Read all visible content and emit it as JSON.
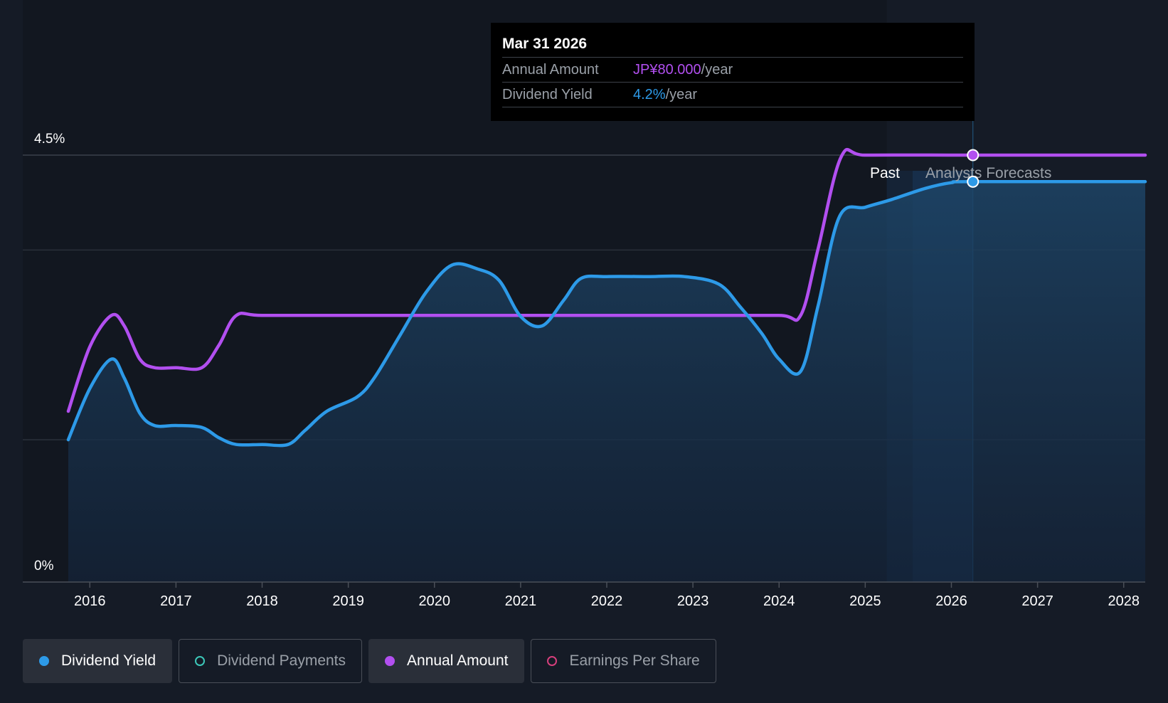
{
  "chart_data": {
    "type": "line",
    "y_axis": {
      "top_label": "4.5%",
      "bottom_label": "0%",
      "min": 0,
      "max": 4.5
    },
    "x_axis": {
      "min": 2015.75,
      "max": 2028.25,
      "ticks": [
        "2016",
        "2017",
        "2018",
        "2019",
        "2020",
        "2021",
        "2022",
        "2023",
        "2024",
        "2025",
        "2026",
        "2027",
        "2028"
      ]
    },
    "regions": {
      "past_label": "Past",
      "forecast_label": "Analysts Forecasts",
      "past_end": 2025.25,
      "forecast_start": 2025.55
    },
    "series": [
      {
        "name": "Dividend Yield",
        "color": "#2d9ae8",
        "unit": "%",
        "points": [
          [
            2015.75,
            1.5
          ],
          [
            2016.0,
            2.04
          ],
          [
            2016.25,
            2.35
          ],
          [
            2016.4,
            2.15
          ],
          [
            2016.58,
            1.78
          ],
          [
            2016.75,
            1.65
          ],
          [
            2017.0,
            1.65
          ],
          [
            2017.3,
            1.63
          ],
          [
            2017.5,
            1.52
          ],
          [
            2017.7,
            1.45
          ],
          [
            2018.0,
            1.45
          ],
          [
            2018.3,
            1.45
          ],
          [
            2018.5,
            1.6
          ],
          [
            2018.75,
            1.8
          ],
          [
            2019.1,
            1.95
          ],
          [
            2019.3,
            2.15
          ],
          [
            2019.6,
            2.6
          ],
          [
            2019.9,
            3.05
          ],
          [
            2020.2,
            3.34
          ],
          [
            2020.5,
            3.3
          ],
          [
            2020.75,
            3.18
          ],
          [
            2021.0,
            2.8
          ],
          [
            2021.25,
            2.7
          ],
          [
            2021.5,
            2.97
          ],
          [
            2021.7,
            3.2
          ],
          [
            2022.0,
            3.22
          ],
          [
            2022.5,
            3.22
          ],
          [
            2022.9,
            3.22
          ],
          [
            2023.3,
            3.14
          ],
          [
            2023.55,
            2.9
          ],
          [
            2023.8,
            2.62
          ],
          [
            2024.0,
            2.35
          ],
          [
            2024.25,
            2.22
          ],
          [
            2024.45,
            2.9
          ],
          [
            2024.7,
            3.85
          ],
          [
            2025.0,
            3.95
          ],
          [
            2025.3,
            4.03
          ],
          [
            2025.7,
            4.15
          ],
          [
            2026.0,
            4.21
          ],
          [
            2026.25,
            4.22
          ],
          [
            2028.25,
            4.22
          ]
        ]
      },
      {
        "name": "Annual Amount",
        "color": "#b24ff0",
        "unit": "JP¥",
        "points": [
          [
            2015.75,
            1.8
          ],
          [
            2016.0,
            2.48
          ],
          [
            2016.25,
            2.81
          ],
          [
            2016.4,
            2.7
          ],
          [
            2016.58,
            2.35
          ],
          [
            2016.75,
            2.26
          ],
          [
            2017.0,
            2.26
          ],
          [
            2017.3,
            2.26
          ],
          [
            2017.5,
            2.5
          ],
          [
            2017.7,
            2.81
          ],
          [
            2018.0,
            2.81
          ],
          [
            2019.0,
            2.81
          ],
          [
            2020.0,
            2.81
          ],
          [
            2021.0,
            2.81
          ],
          [
            2022.0,
            2.81
          ],
          [
            2023.0,
            2.81
          ],
          [
            2024.0,
            2.81
          ],
          [
            2024.25,
            2.81
          ],
          [
            2024.45,
            3.5
          ],
          [
            2024.72,
            4.48
          ],
          [
            2025.0,
            4.5
          ],
          [
            2026.0,
            4.5
          ],
          [
            2026.25,
            4.5
          ],
          [
            2028.25,
            4.5
          ]
        ]
      }
    ],
    "highlight": {
      "x": 2026.25
    }
  },
  "tooltip": {
    "date": "Mar 31 2026",
    "rows": [
      {
        "label": "Annual Amount",
        "value": "JP¥80.000",
        "unit": "/year"
      },
      {
        "label": "Dividend Yield",
        "value": "4.2%",
        "unit": "/year"
      }
    ]
  },
  "legend": [
    {
      "label": "Dividend Yield",
      "color": "#2d9ae8",
      "active": true
    },
    {
      "label": "Dividend Payments",
      "color": "#3cc7b8",
      "active": false
    },
    {
      "label": "Annual Amount",
      "color": "#b24ff0",
      "active": true
    },
    {
      "label": "Earnings Per Share",
      "color": "#d63f7c",
      "active": false
    }
  ]
}
